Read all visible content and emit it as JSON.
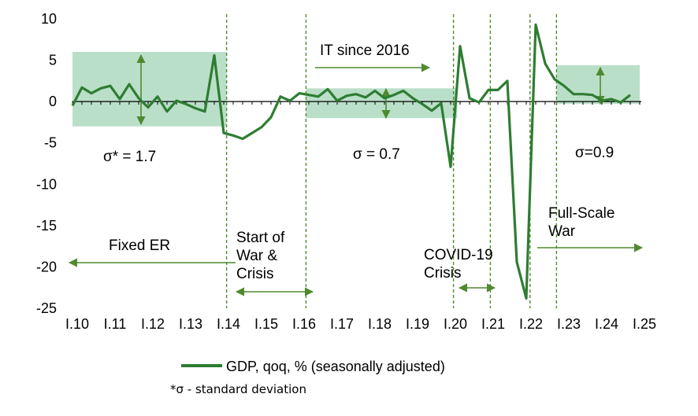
{
  "colors": {
    "line": "#2E7D32",
    "band": "#AED9C0",
    "arrow": "#4F8A2E",
    "divider": "#4F8A2E",
    "axis": "#000000"
  },
  "chart_data": {
    "type": "line",
    "ylim": [
      -25,
      10
    ],
    "yticks": [
      10,
      5,
      0,
      -5,
      -10,
      -15,
      -20,
      -25
    ],
    "xlim": [
      0,
      60
    ],
    "xtick_labels": [
      "I.10",
      "I.11",
      "I.12",
      "I.13",
      "I.14",
      "I.15",
      "I.16",
      "I.17",
      "I.18",
      "I.19",
      "I.20",
      "I.21",
      "I.22",
      "I.23",
      "I.24",
      "I.25"
    ],
    "grid": false,
    "legend": {
      "label": "GDP, qoq, % (seasonally adjusted)",
      "position": "bottom"
    },
    "note": "*σ - standard deviation",
    "series": [
      {
        "name": "GDP, qoq, % (seasonally adjusted)",
        "x": [
          0,
          1,
          2,
          3,
          4,
          5,
          6,
          7,
          8,
          9,
          10,
          11,
          12,
          13,
          14,
          15,
          16,
          17,
          18,
          19,
          20,
          21,
          22,
          23,
          24,
          25,
          26,
          27,
          28,
          29,
          30,
          31,
          32,
          33,
          34,
          35,
          36,
          37,
          38,
          39,
          40,
          41,
          42,
          43,
          44,
          45,
          46,
          47,
          48,
          49,
          50,
          51,
          52,
          53,
          54,
          55,
          56,
          57,
          58,
          59,
          60
        ],
        "values": [
          -0.5,
          1.7,
          1.0,
          1.6,
          1.9,
          0.3,
          2.1,
          0.4,
          -0.7,
          0.6,
          -1.2,
          0.1,
          -0.3,
          -0.8,
          -1.2,
          5.6,
          -3.8,
          -4.1,
          -4.5,
          -3.8,
          -3.1,
          -1.9,
          0.6,
          0.1,
          1.0,
          0.8,
          0.6,
          1.5,
          0.1,
          0.7,
          0.9,
          0.5,
          1.3,
          0.4,
          0.8,
          1.3,
          0.4,
          -0.3,
          -1.1,
          -0.2,
          -7.9,
          6.7,
          0.4,
          -0.1,
          1.4,
          1.4,
          2.5,
          -19.4,
          -23.8,
          9.3,
          4.6,
          2.7,
          1.9,
          0.9,
          0.9,
          0.8,
          0.1,
          0.3,
          -0.1,
          0.8,
          null
        ]
      }
    ],
    "bands": [
      {
        "from": 0,
        "to": 16.3,
        "ymin": -3,
        "ymax": 6
      },
      {
        "from": 24.7,
        "to": 40.7,
        "ymin": -2,
        "ymax": 1.6
      },
      {
        "from": 51.2,
        "to": 60.8,
        "ymin": -0.3,
        "ymax": 4.4
      }
    ],
    "dividers": [
      16.3,
      24.7,
      40.3,
      44.2,
      48.4,
      51.2
    ],
    "annotations": [
      {
        "id": "sigma-1",
        "text": "σ* = 1.7"
      },
      {
        "id": "sigma-2",
        "text": "σ = 0.7"
      },
      {
        "id": "sigma-3",
        "text": "σ=0.9"
      },
      {
        "id": "it-since",
        "text": "IT since 2016"
      },
      {
        "id": "fixed-er",
        "text": "Fixed ER"
      },
      {
        "id": "start-war",
        "lines": [
          "Start of",
          "War &",
          "Crisis"
        ]
      },
      {
        "id": "covid",
        "lines": [
          "COVID-19",
          "Crisis"
        ]
      },
      {
        "id": "full-scale",
        "lines": [
          "Full-Scale",
          "War"
        ]
      }
    ]
  }
}
